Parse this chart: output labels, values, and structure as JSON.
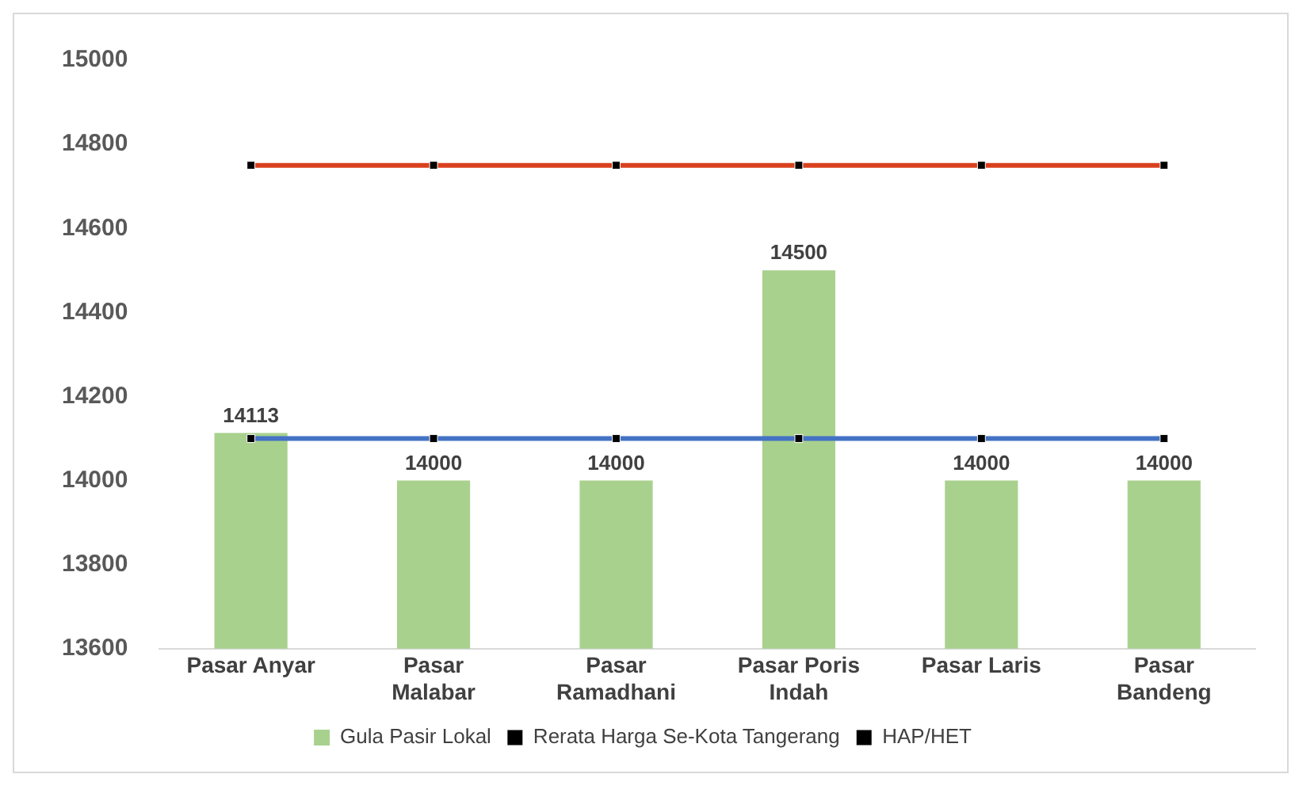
{
  "chart_data": {
    "type": "bar",
    "categories": [
      "Pasar Anyar",
      "Pasar Malabar",
      "Pasar Ramadhani",
      "Pasar Poris Indah",
      "Pasar Laris",
      "Pasar Bandeng"
    ],
    "series": [
      {
        "name": "Gula Pasir Lokal",
        "color": "#a9d18e",
        "values": [
          14113,
          14000,
          14000,
          14500,
          14000,
          14000
        ],
        "value_labels": [
          "14113",
          "14000",
          "14000",
          "14500",
          "14000",
          "14000"
        ]
      },
      {
        "name": "Rerata Harga Se-Kota Tangerang",
        "type": "line",
        "color": "#4472c4",
        "values": [
          14100,
          14100,
          14100,
          14100,
          14100,
          14100
        ]
      },
      {
        "name": "HAP/HET",
        "type": "line",
        "color": "#d9411e",
        "values": [
          14750,
          14750,
          14750,
          14750,
          14750,
          14750
        ]
      }
    ],
    "ylim": [
      13600,
      15000
    ],
    "yticks": [
      13600,
      13800,
      14000,
      14200,
      14400,
      14600,
      14800,
      15000
    ],
    "grid": false,
    "legend": "bottom",
    "marker": "square",
    "line_style": "solid"
  }
}
